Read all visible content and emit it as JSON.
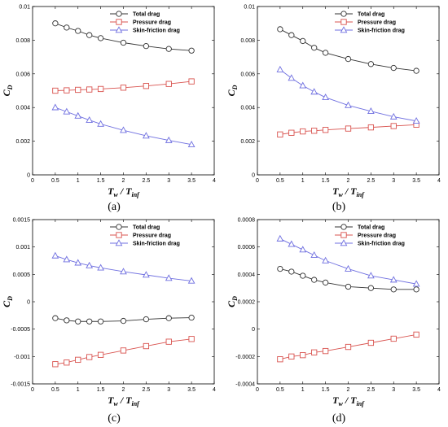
{
  "chart_data": [
    {
      "type": "line",
      "caption": "(a)",
      "xlabel": "T_w / T_inf",
      "ylabel": "C_D",
      "xlim": [
        0,
        4
      ],
      "ylim": [
        0,
        0.01
      ],
      "xticks": [
        "0",
        "0.5",
        "1",
        "1.5",
        "2",
        "2.5",
        "3",
        "3.5",
        "4"
      ],
      "yticks": [
        "0",
        "0.002",
        "0.004",
        "0.006",
        "0.008",
        "0.01"
      ],
      "legend_position": "top-right",
      "x": [
        0.5,
        0.75,
        1.0,
        1.25,
        1.5,
        2.0,
        2.5,
        3.0,
        3.5
      ],
      "series": [
        {
          "name": "Total drag",
          "color": "#333333",
          "marker": "circle",
          "values": [
            0.009,
            0.00875,
            0.00855,
            0.0083,
            0.00812,
            0.00785,
            0.00765,
            0.00748,
            0.00738
          ]
        },
        {
          "name": "Pressure drag",
          "color": "#d9534f",
          "marker": "square",
          "values": [
            0.005,
            0.00502,
            0.00505,
            0.00507,
            0.0051,
            0.00518,
            0.00528,
            0.0054,
            0.00555
          ]
        },
        {
          "name": "Skin-friction drag",
          "color": "#6f6fe0",
          "marker": "triangle",
          "values": [
            0.004,
            0.00375,
            0.0035,
            0.00325,
            0.00302,
            0.00265,
            0.00232,
            0.00205,
            0.0018
          ]
        }
      ]
    },
    {
      "type": "line",
      "caption": "(b)",
      "xlabel": "T_w / T_inf",
      "ylabel": "C_D",
      "xlim": [
        0,
        4
      ],
      "ylim": [
        0,
        0.01
      ],
      "xticks": [
        "0",
        "0.5",
        "1",
        "1.5",
        "2",
        "2.5",
        "3",
        "3.5",
        "4"
      ],
      "yticks": [
        "0",
        "0.002",
        "0.004",
        "0.006",
        "0.008",
        "0.01"
      ],
      "legend_position": "top-right",
      "x": [
        0.5,
        0.75,
        1.0,
        1.25,
        1.5,
        2.0,
        2.5,
        3.0,
        3.5
      ],
      "series": [
        {
          "name": "Total drag",
          "color": "#333333",
          "marker": "circle",
          "values": [
            0.00865,
            0.0083,
            0.00795,
            0.00755,
            0.00725,
            0.00688,
            0.00658,
            0.00635,
            0.00618
          ]
        },
        {
          "name": "Pressure drag",
          "color": "#d9534f",
          "marker": "square",
          "values": [
            0.0024,
            0.0025,
            0.00258,
            0.00262,
            0.00267,
            0.00275,
            0.00282,
            0.0029,
            0.00298
          ]
        },
        {
          "name": "Skin-friction drag",
          "color": "#6f6fe0",
          "marker": "triangle",
          "values": [
            0.00625,
            0.00575,
            0.0053,
            0.00493,
            0.0046,
            0.00413,
            0.00378,
            0.00345,
            0.0032
          ]
        }
      ]
    },
    {
      "type": "line",
      "caption": "(c)",
      "xlabel": "T_w / T_inf",
      "ylabel": "C_D",
      "xlim": [
        0,
        4
      ],
      "ylim": [
        -0.0015,
        0.0015
      ],
      "xticks": [
        "0",
        "0.5",
        "1",
        "1.5",
        "2",
        "2.5",
        "3",
        "3.5",
        "4"
      ],
      "yticks": [
        "-0.0015",
        "-0.001",
        "-0.0005",
        "0",
        "0.0005",
        "0.001",
        "0.0015"
      ],
      "legend_position": "top-right",
      "x": [
        0.5,
        0.75,
        1.0,
        1.25,
        1.5,
        2.0,
        2.5,
        3.0,
        3.5
      ],
      "series": [
        {
          "name": "Total drag",
          "color": "#333333",
          "marker": "circle",
          "values": [
            -0.0003,
            -0.00034,
            -0.00036,
            -0.00036,
            -0.00036,
            -0.00035,
            -0.00032,
            -0.0003,
            -0.00029
          ]
        },
        {
          "name": "Pressure drag",
          "color": "#d9534f",
          "marker": "square",
          "values": [
            -0.00114,
            -0.00111,
            -0.00106,
            -0.00101,
            -0.00097,
            -0.00089,
            -0.00081,
            -0.00073,
            -0.00068
          ]
        },
        {
          "name": "Skin-friction drag",
          "color": "#6f6fe0",
          "marker": "triangle",
          "values": [
            0.00084,
            0.00077,
            0.00071,
            0.00066,
            0.00062,
            0.00055,
            0.00049,
            0.00043,
            0.00038
          ]
        }
      ]
    },
    {
      "type": "line",
      "caption": "(d)",
      "xlabel": "T_w / T_inf",
      "ylabel": "C_D",
      "xlim": [
        0,
        4
      ],
      "ylim": [
        -0.0004,
        0.0008
      ],
      "xticks": [
        "0",
        "0.5",
        "1",
        "1.5",
        "2",
        "2.5",
        "3",
        "3.5",
        "4"
      ],
      "yticks": [
        "-0.0004",
        "-0.0002",
        "0",
        "0.0002",
        "0.0004",
        "0.0006",
        "0.0008"
      ],
      "legend_position": "top-right",
      "x": [
        0.5,
        0.75,
        1.0,
        1.25,
        1.5,
        2.0,
        2.5,
        3.0,
        3.5
      ],
      "series": [
        {
          "name": "Total drag",
          "color": "#333333",
          "marker": "circle",
          "values": [
            0.00044,
            0.00042,
            0.00039,
            0.00036,
            0.00034,
            0.00031,
            0.0003,
            0.00029,
            0.00029
          ]
        },
        {
          "name": "Pressure drag",
          "color": "#d9534f",
          "marker": "square",
          "values": [
            -0.00022,
            -0.0002,
            -0.00019,
            -0.00017,
            -0.00016,
            -0.00013,
            -0.0001,
            -7e-05,
            -4e-05
          ]
        },
        {
          "name": "Skin-friction drag",
          "color": "#6f6fe0",
          "marker": "triangle",
          "values": [
            0.00066,
            0.00062,
            0.00058,
            0.00054,
            0.0005,
            0.00044,
            0.00039,
            0.00036,
            0.00033
          ]
        }
      ]
    }
  ]
}
